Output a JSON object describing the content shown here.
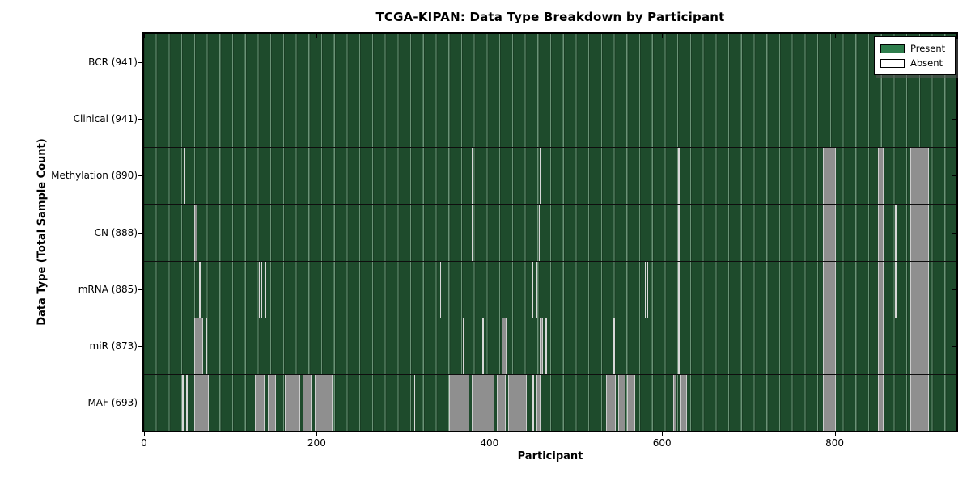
{
  "title": "TCGA-KIPAN: Data Type Breakdown by Participant",
  "x_axis_label": "Participant",
  "y_axis_label": "Data Type (Total Sample Count)",
  "legend": {
    "present_label": "Present",
    "absent_label": "Absent"
  },
  "colors": {
    "present_fill": "#1e4b2c",
    "legend_present": "#2e7d4c",
    "absent_block": "#8f8f8f",
    "absent_thin": "#d8d8d8",
    "grid_highlight": "#aacdb4",
    "row_divider": "#0e0e0e",
    "plot_border": "#000000"
  },
  "chart_data": {
    "type": "heatmap",
    "title": "TCGA-KIPAN: Data Type Breakdown by Participant",
    "xlabel": "Participant",
    "ylabel": "Data Type (Total Sample Count)",
    "legend": [
      "Present",
      "Absent"
    ],
    "legend_position": "upper right",
    "x_range": [
      0,
      941
    ],
    "x_ticks": [
      0,
      200,
      400,
      600,
      800
    ],
    "cell_states": [
      "present",
      "absent"
    ],
    "rows": [
      {
        "label": "BCR (941)",
        "name": "BCR",
        "total_samples": 941,
        "absent_ranges": []
      },
      {
        "label": "Clinical (941)",
        "name": "Clinical",
        "total_samples": 941,
        "absent_ranges": []
      },
      {
        "label": "Methylation (890)",
        "name": "Methylation",
        "total_samples": 890,
        "absent_ranges": [
          [
            47,
            48
          ],
          [
            380,
            381
          ],
          [
            458,
            459
          ],
          [
            619,
            620
          ],
          [
            786,
            801
          ],
          [
            850,
            857
          ],
          [
            888,
            909
          ]
        ]
      },
      {
        "label": "CN (888)",
        "name": "CN",
        "total_samples": 888,
        "absent_ranges": [
          [
            58,
            62
          ],
          [
            380,
            381
          ],
          [
            457,
            458
          ],
          [
            619,
            620
          ],
          [
            786,
            801
          ],
          [
            850,
            857
          ],
          [
            870,
            871
          ],
          [
            888,
            909
          ]
        ]
      },
      {
        "label": "mRNA (885)",
        "name": "mRNA",
        "total_samples": 885,
        "absent_ranges": [
          [
            64,
            65
          ],
          [
            133,
            134
          ],
          [
            136,
            137
          ],
          [
            140,
            141
          ],
          [
            343,
            344
          ],
          [
            450,
            451
          ],
          [
            454,
            455
          ],
          [
            580,
            581
          ],
          [
            583,
            584
          ],
          [
            619,
            620
          ],
          [
            786,
            801
          ],
          [
            850,
            857
          ],
          [
            870,
            871
          ],
          [
            888,
            909
          ]
        ]
      },
      {
        "label": "miR (873)",
        "name": "miR",
        "total_samples": 873,
        "absent_ranges": [
          [
            46,
            47
          ],
          [
            58,
            68
          ],
          [
            72,
            73
          ],
          [
            164,
            165
          ],
          [
            369,
            370
          ],
          [
            392,
            393
          ],
          [
            414,
            420
          ],
          [
            458,
            462
          ],
          [
            465,
            467
          ],
          [
            544,
            545
          ],
          [
            619,
            620
          ],
          [
            786,
            801
          ],
          [
            850,
            857
          ],
          [
            888,
            909
          ]
        ]
      },
      {
        "label": "MAF (693)",
        "name": "MAF",
        "total_samples": 693,
        "absent_ranges": [
          [
            44,
            46
          ],
          [
            49,
            50
          ],
          [
            58,
            75
          ],
          [
            115,
            116
          ],
          [
            128,
            140
          ],
          [
            143,
            153
          ],
          [
            163,
            181
          ],
          [
            184,
            194
          ],
          [
            198,
            218
          ],
          [
            282,
            283
          ],
          [
            313,
            314
          ],
          [
            353,
            377
          ],
          [
            380,
            406
          ],
          [
            409,
            419
          ],
          [
            422,
            443
          ],
          [
            449,
            452
          ],
          [
            455,
            459
          ],
          [
            535,
            546
          ],
          [
            549,
            558
          ],
          [
            560,
            569
          ],
          [
            613,
            617
          ],
          [
            620,
            629
          ],
          [
            786,
            801
          ],
          [
            850,
            857
          ],
          [
            888,
            909
          ]
        ]
      }
    ]
  }
}
